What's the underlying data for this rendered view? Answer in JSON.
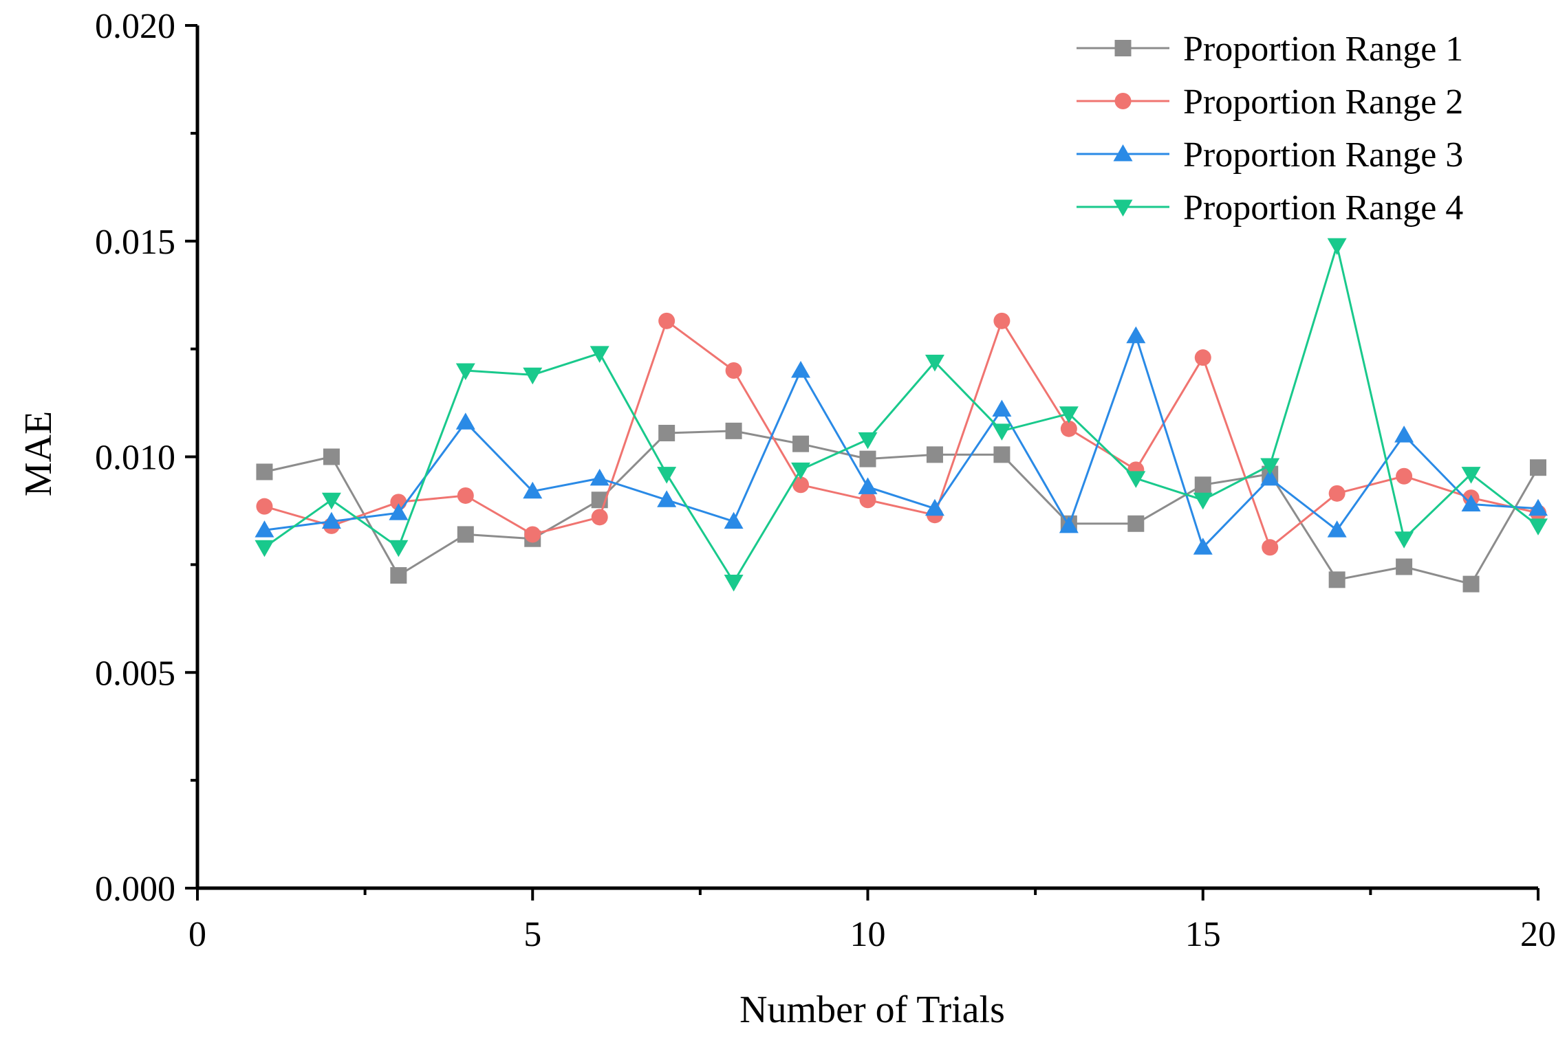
{
  "chart_data": {
    "type": "line",
    "title": "",
    "xlabel": "Number of Trials",
    "ylabel": "MAE",
    "xlim": [
      0,
      20
    ],
    "ylim": [
      0,
      0.02
    ],
    "x_ticks": [
      0,
      5,
      10,
      15,
      20
    ],
    "x_tick_labels": [
      "0",
      "5",
      "10",
      "15",
      "20"
    ],
    "y_ticks": [
      0,
      0.005,
      0.01,
      0.015,
      0.02
    ],
    "y_tick_labels": [
      "0.000",
      "0.005",
      "0.010",
      "0.015",
      "0.020"
    ],
    "grid": false,
    "legend_position": "top-right",
    "x": [
      1,
      2,
      3,
      4,
      5,
      6,
      7,
      8,
      9,
      10,
      11,
      12,
      13,
      14,
      15,
      16,
      17,
      18,
      19,
      20
    ],
    "series": [
      {
        "name": "Proportion Range 1",
        "color": "#8c8c8c",
        "marker": "square",
        "values": [
          0.00965,
          0.01,
          0.00725,
          0.0082,
          0.0081,
          0.009,
          0.01055,
          0.0106,
          0.0103,
          0.00995,
          0.01005,
          0.01005,
          0.00845,
          0.00845,
          0.00935,
          0.0096,
          0.00715,
          0.00745,
          0.00705,
          0.00975
        ]
      },
      {
        "name": "Proportion Range 2",
        "color": "#f07470",
        "marker": "circle",
        "values": [
          0.00885,
          0.0084,
          0.00895,
          0.0091,
          0.0082,
          0.0086,
          0.01315,
          0.012,
          0.00935,
          0.009,
          0.00865,
          0.01315,
          0.01065,
          0.0097,
          0.0123,
          0.0079,
          0.00915,
          0.00955,
          0.00905,
          0.0087
        ]
      },
      {
        "name": "Proportion Range 3",
        "color": "#2a8ae6",
        "marker": "triangle-up",
        "values": [
          0.0083,
          0.0085,
          0.0087,
          0.0108,
          0.0092,
          0.0095,
          0.009,
          0.0085,
          0.012,
          0.0093,
          0.0088,
          0.0111,
          0.0084,
          0.0128,
          0.0079,
          0.0095,
          0.0083,
          0.0105,
          0.0089,
          0.0088
        ]
      },
      {
        "name": "Proportion Range 4",
        "color": "#19c98c",
        "marker": "triangle-down",
        "values": [
          0.0079,
          0.009,
          0.0079,
          0.012,
          0.0119,
          0.0124,
          0.0096,
          0.0071,
          0.0097,
          0.0104,
          0.0122,
          0.0106,
          0.011,
          0.0095,
          0.009,
          0.0098,
          0.0149,
          0.0081,
          0.0096,
          0.0084
        ]
      }
    ]
  }
}
